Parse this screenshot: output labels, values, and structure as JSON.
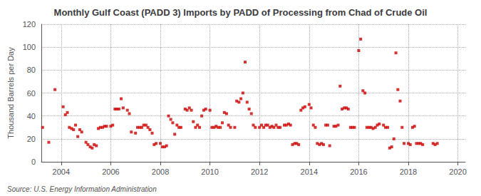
{
  "chart_data": {
    "type": "scatter",
    "title": "Monthly Gulf Coast (PADD 3) Imports by PADD of Processing from Chad of Crude Oil",
    "ylabel": "Thousand Barrels per Day",
    "source": "Source: U.S. Energy Information Administration",
    "x": [
      2003.25,
      2003.5,
      2003.75,
      2004.08,
      2004.17,
      2004.25,
      2004.33,
      2004.42,
      2004.5,
      2004.58,
      2004.67,
      2004.75,
      2004.83,
      2005.0,
      2005.08,
      2005.17,
      2005.25,
      2005.33,
      2005.42,
      2005.5,
      2005.58,
      2005.67,
      2005.75,
      2005.83,
      2006.0,
      2006.08,
      2006.17,
      2006.25,
      2006.33,
      2006.42,
      2006.5,
      2006.67,
      2006.75,
      2006.83,
      2007.0,
      2007.08,
      2007.17,
      2007.25,
      2007.33,
      2007.42,
      2007.5,
      2007.58,
      2007.67,
      2007.75,
      2007.83,
      2008.0,
      2008.08,
      2008.17,
      2008.25,
      2008.33,
      2008.42,
      2008.5,
      2008.58,
      2008.67,
      2008.75,
      2008.83,
      2009.0,
      2009.08,
      2009.17,
      2009.25,
      2009.33,
      2009.42,
      2009.5,
      2009.58,
      2009.67,
      2009.75,
      2009.83,
      2010.0,
      2010.08,
      2010.17,
      2010.25,
      2010.33,
      2010.42,
      2010.5,
      2010.58,
      2010.67,
      2010.75,
      2010.83,
      2011.0,
      2011.08,
      2011.17,
      2011.25,
      2011.33,
      2011.42,
      2011.5,
      2011.58,
      2011.67,
      2011.75,
      2011.83,
      2012.0,
      2012.08,
      2012.17,
      2012.25,
      2012.33,
      2012.42,
      2012.5,
      2012.58,
      2012.67,
      2012.75,
      2012.83,
      2013.0,
      2013.08,
      2013.17,
      2013.25,
      2013.33,
      2013.42,
      2013.5,
      2013.58,
      2013.67,
      2013.75,
      2013.83,
      2014.0,
      2014.08,
      2014.17,
      2014.25,
      2014.33,
      2014.42,
      2014.5,
      2014.58,
      2014.67,
      2014.75,
      2014.83,
      2015.0,
      2015.08,
      2015.17,
      2015.25,
      2015.33,
      2015.42,
      2015.5,
      2015.58,
      2015.67,
      2015.75,
      2015.83,
      2016.0,
      2016.08,
      2016.17,
      2016.25,
      2016.33,
      2016.42,
      2016.5,
      2016.58,
      2016.67,
      2016.75,
      2016.83,
      2017.0,
      2017.08,
      2017.17,
      2017.25,
      2017.33,
      2017.42,
      2017.5,
      2017.58,
      2017.67,
      2017.75,
      2017.83,
      2018.0,
      2018.08,
      2018.17,
      2018.25,
      2018.33,
      2018.42,
      2018.5,
      2018.58,
      2019.0,
      2019.08,
      2019.17
    ],
    "values": [
      30,
      17,
      63,
      48,
      41,
      43,
      30,
      29,
      28,
      32,
      22,
      28,
      26,
      17,
      15,
      13,
      12,
      15,
      14,
      29,
      30,
      30,
      31,
      31,
      31,
      32,
      46,
      46,
      46,
      55,
      47,
      45,
      42,
      26,
      25,
      30,
      30,
      30,
      32,
      32,
      30,
      28,
      25,
      15,
      16,
      16,
      13,
      13,
      14,
      40,
      37,
      34,
      24,
      32,
      30,
      30,
      46,
      45,
      47,
      45,
      35,
      30,
      32,
      30,
      40,
      45,
      46,
      45,
      30,
      30,
      31,
      30,
      30,
      34,
      43,
      42,
      32,
      30,
      30,
      53,
      52,
      55,
      60,
      87,
      52,
      46,
      42,
      32,
      30,
      30,
      32,
      30,
      32,
      32,
      30,
      31,
      30,
      32,
      30,
      30,
      32,
      32,
      33,
      32,
      15,
      16,
      16,
      15,
      45,
      47,
      48,
      50,
      47,
      32,
      30,
      16,
      15,
      16,
      15,
      32,
      32,
      14,
      31,
      31,
      32,
      66,
      46,
      47,
      47,
      46,
      30,
      30,
      30,
      97,
      107,
      62,
      60,
      30,
      30,
      30,
      29,
      30,
      32,
      33,
      32,
      30,
      30,
      12,
      13,
      20,
      95,
      63,
      53,
      30,
      16,
      16,
      15,
      30,
      31,
      16,
      16,
      16,
      15,
      16,
      15,
      16
    ],
    "color": "#cc0000",
    "marker": "square",
    "xlim": [
      2003.2,
      2020.3
    ],
    "xticks": [
      2004,
      2006,
      2008,
      2010,
      2012,
      2014,
      2016,
      2018,
      2020
    ],
    "ylim": [
      0,
      120
    ],
    "yticks": [
      0,
      20,
      40,
      60,
      80,
      100,
      120
    ],
    "grid": true
  }
}
